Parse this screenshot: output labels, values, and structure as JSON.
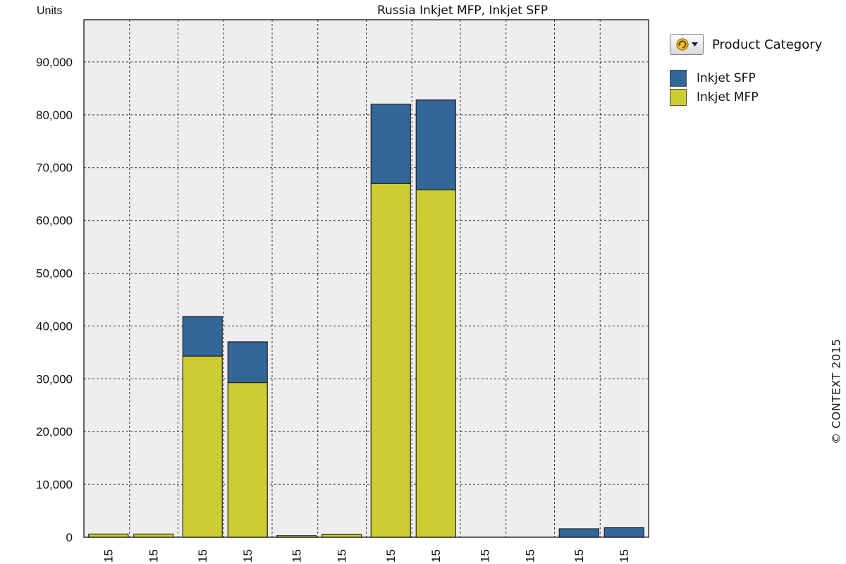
{
  "chart_data": {
    "type": "bar",
    "stacked": true,
    "title": "Russia  Inkjet MFP, Inkjet SFP",
    "ylabel": "Units",
    "xlabel": "",
    "ylim": [
      0,
      98000
    ],
    "yticks": [
      0,
      10000,
      20000,
      30000,
      40000,
      50000,
      60000,
      70000,
      80000,
      90000
    ],
    "ytick_labels": [
      "0",
      "10,000",
      "20,000",
      "30,000",
      "40,000",
      "50,000",
      "60,000",
      "70,000",
      "80,000",
      "90,000"
    ],
    "grid": true,
    "legend_position": "top-right",
    "groups": 6,
    "bars_per_group": 2,
    "categories": [
      "15",
      "15",
      "15",
      "15",
      "15",
      "15",
      "15",
      "15",
      "15",
      "15",
      "15",
      "15"
    ],
    "series": [
      {
        "name": "Inkjet MFP",
        "color": "#cccc33",
        "values": [
          600,
          600,
          34300,
          29300,
          300,
          500,
          67000,
          65800,
          0,
          0,
          0,
          0
        ]
      },
      {
        "name": "Inkjet SFP",
        "color": "#336699",
        "values": [
          0,
          0,
          7500,
          7700,
          0,
          0,
          15000,
          17000,
          0,
          0,
          1600,
          1800
        ]
      }
    ]
  },
  "legend": {
    "heading": "Product Category",
    "filter_icon": "refresh-dropdown-icon",
    "items": [
      {
        "label": "Inkjet SFP",
        "color": "#336699"
      },
      {
        "label": "Inkjet MFP",
        "color": "#cccc33"
      }
    ]
  },
  "colors": {
    "plot_background": "#efedee",
    "grid": "#333333",
    "bar_outline": "#222222"
  },
  "copyright": "© CONTEXT 2015"
}
